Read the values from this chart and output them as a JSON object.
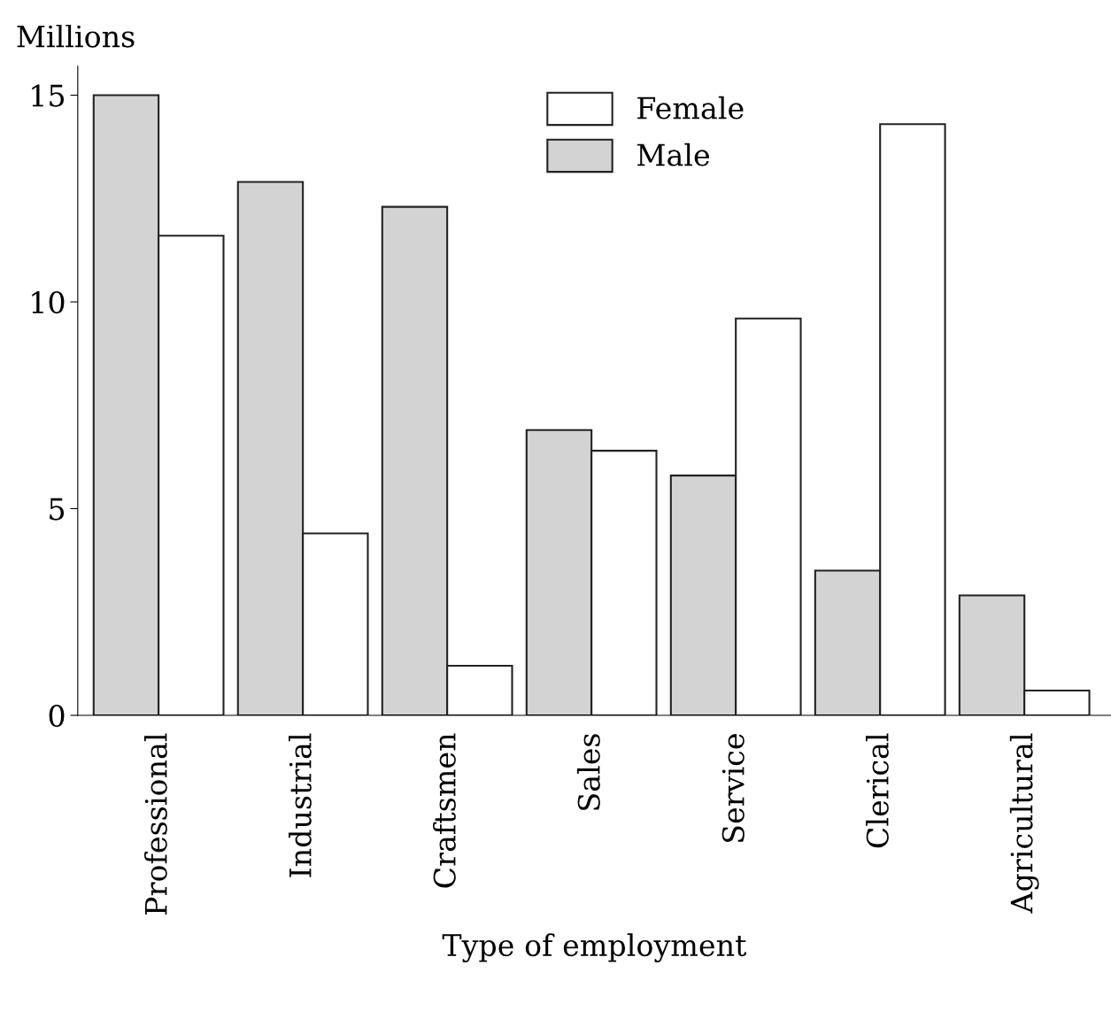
{
  "chart_data": {
    "type": "bar",
    "xlabel": "Type of employment",
    "ylabel": "Millions",
    "categories": [
      "Professional",
      "Industrial",
      "Craftsmen",
      "Sales",
      "Service",
      "Clerical",
      "Agricultural"
    ],
    "series": [
      {
        "name": "Male",
        "color": "#d3d3d3",
        "values": [
          15,
          12.9,
          12.3,
          6.9,
          5.8,
          3.5,
          2.9
        ]
      },
      {
        "name": "Female",
        "color": "#ffffff",
        "values": [
          11.6,
          4.4,
          1.2,
          6.4,
          9.6,
          14.3,
          0.6
        ]
      }
    ],
    "ylim": [
      0,
      15.7
    ],
    "yticks": [
      0,
      5,
      10,
      15
    ],
    "grid": false,
    "legend": "top"
  }
}
